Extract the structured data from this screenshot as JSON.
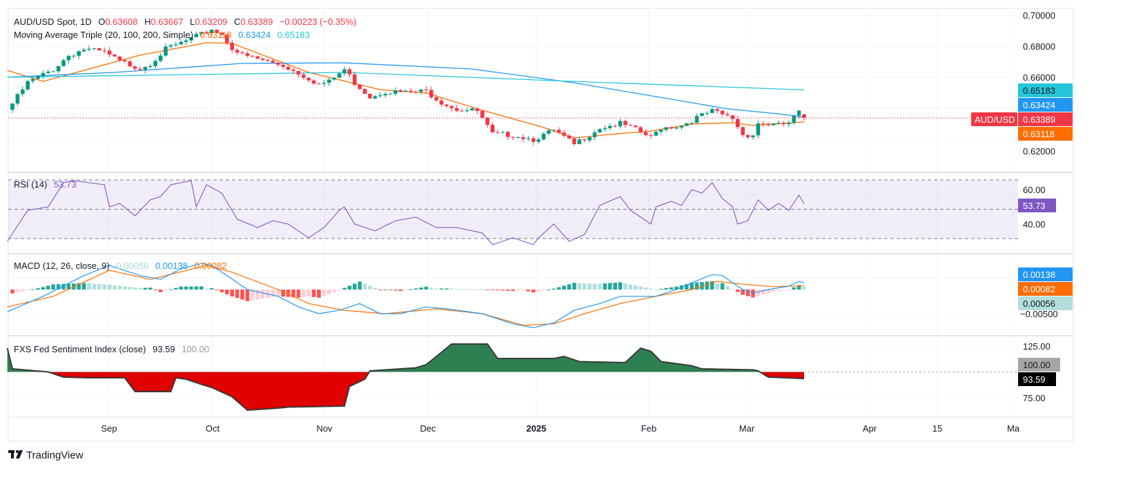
{
  "header": {
    "symbol": "AUD/USD Spot, 1D",
    "o_label": "O",
    "open": "0.63608",
    "h_label": "H",
    "high": "0.63667",
    "l_label": "L",
    "low": "0.63209",
    "c_label": "C",
    "close": "0.63389",
    "change": "−0.00223 (−0.35%)",
    "ma_title": "Moving Average Triple (20, 100, 200, Simple)",
    "ma20": "0.63118",
    "ma100": "0.63424",
    "ma200": "0.65183"
  },
  "colors": {
    "up": "#089981",
    "down": "#f23645",
    "ma20": "#ff6d00",
    "ma100": "#2196f3",
    "ma200": "#26c6da",
    "rsi": "#7e57c2",
    "fsi_up": "#2e8050",
    "fsi_down": "#e00000"
  },
  "axes": {
    "price_ticks": [
      "0.70000",
      "0.68000",
      "0.66000",
      "0.62000"
    ],
    "rsi_ticks": [
      "60.00",
      "40.00"
    ],
    "macd_ticks": [
      "−0.00500"
    ],
    "fsi_ticks": [
      "125.00",
      "75.00"
    ],
    "time_labels": [
      "Sep",
      "Oct",
      "Nov",
      "Dec",
      "2025",
      "Feb",
      "Mar",
      "Apr",
      "15",
      "Ma"
    ]
  },
  "price_labels": {
    "symbol_tag": "AUD/USD",
    "ma200": "0.65183",
    "ma100": "0.63424",
    "last": "0.63389",
    "ma20": "0.63118"
  },
  "rsi_panel": {
    "title": "RSI (14)",
    "value": "53.73"
  },
  "macd_panel": {
    "title": "MACD (12, 26, close, 9)",
    "hist": "0.00056",
    "macd": "0.00138",
    "signal": "0.00082"
  },
  "fsi_panel": {
    "title": "FXS Fed Sentiment Index (close)",
    "value": "93.59",
    "ref": "100.00"
  },
  "footer": {
    "brand": "TradingView"
  },
  "chart_data": [
    {
      "type": "candlestick",
      "title": "AUD/USD Spot, 1D",
      "x_unit": "bar index (daily bars, mid-Aug 2024 to 19 Mar 2025)",
      "ylim": [
        0.61,
        0.7
      ],
      "close_waypoints": [
        [
          0,
          0.643
        ],
        [
          3,
          0.6565
        ],
        [
          8,
          0.665
        ],
        [
          11,
          0.674
        ],
        [
          14,
          0.678
        ],
        [
          18,
          0.676
        ],
        [
          21,
          0.67
        ],
        [
          25,
          0.666
        ],
        [
          27,
          0.669
        ],
        [
          30,
          0.678
        ],
        [
          33,
          0.682
        ],
        [
          37,
          0.6875
        ],
        [
          39,
          0.691
        ],
        [
          41,
          0.6875
        ],
        [
          43,
          0.679
        ],
        [
          45,
          0.674
        ],
        [
          49,
          0.671
        ],
        [
          53,
          0.6675
        ],
        [
          57,
          0.661
        ],
        [
          60,
          0.6555
        ],
        [
          62,
          0.657
        ],
        [
          65,
          0.665
        ],
        [
          67,
          0.6565
        ],
        [
          70,
          0.6475
        ],
        [
          73,
          0.651
        ],
        [
          77,
          0.65
        ],
        [
          81,
          0.651
        ],
        [
          84,
          0.644
        ],
        [
          87,
          0.6395
        ],
        [
          91,
          0.638
        ],
        [
          94,
          0.623
        ],
        [
          98,
          0.623
        ],
        [
          102,
          0.62
        ],
        [
          106,
          0.6255
        ],
        [
          110,
          0.6165
        ],
        [
          112,
          0.621
        ],
        [
          115,
          0.6275
        ],
        [
          119,
          0.63
        ],
        [
          122,
          0.626
        ],
        [
          125,
          0.621
        ],
        [
          127,
          0.6275
        ],
        [
          131,
          0.629
        ],
        [
          134,
          0.634
        ],
        [
          137,
          0.638
        ],
        [
          141,
          0.6335
        ],
        [
          143,
          0.623
        ],
        [
          145,
          0.623
        ],
        [
          146,
          0.6305
        ],
        [
          150,
          0.629
        ],
        [
          152,
          0.6305
        ],
        [
          154,
          0.6375
        ],
        [
          155,
          0.63389
        ]
      ],
      "last_bar": {
        "open": 0.63608,
        "high": 0.63667,
        "low": 0.63209,
        "close": 0.63389
      },
      "ma": [
        {
          "name": "SMA 20",
          "points": [
            [
              -1,
              0.6644
            ],
            [
              6,
              0.6573
            ],
            [
              25,
              0.6742
            ],
            [
              38,
              0.6822
            ],
            [
              43,
              0.6818
            ],
            [
              58,
              0.6631
            ],
            [
              72,
              0.652
            ],
            [
              81,
              0.6498
            ],
            [
              92,
              0.6387
            ],
            [
              104,
              0.6276
            ],
            [
              110,
              0.6209
            ],
            [
              117,
              0.6231
            ],
            [
              125,
              0.6253
            ],
            [
              133,
              0.6298
            ],
            [
              141,
              0.6307
            ],
            [
              145,
              0.6289
            ],
            [
              155,
              0.63118
            ]
          ]
        },
        {
          "name": "SMA 100",
          "points": [
            [
              -1,
              0.66
            ],
            [
              20,
              0.6631
            ],
            [
              45,
              0.6689
            ],
            [
              65,
              0.6693
            ],
            [
              90,
              0.6653
            ],
            [
              110,
              0.6564
            ],
            [
              130,
              0.6453
            ],
            [
              140,
              0.6396
            ],
            [
              150,
              0.6364
            ],
            [
              155,
              0.63424
            ]
          ]
        },
        {
          "name": "SMA 200",
          "points": [
            [
              -1,
              0.66
            ],
            [
              65,
              0.6631
            ],
            [
              110,
              0.6573
            ],
            [
              155,
              0.65183
            ]
          ]
        }
      ]
    },
    {
      "type": "line",
      "title": "RSI (14)",
      "ylim": [
        20,
        80
      ],
      "bands": [
        30,
        50,
        70
      ],
      "points": [
        [
          -1,
          28.1
        ],
        [
          3,
          49.3
        ],
        [
          7,
          51.6
        ],
        [
          10,
          68.1
        ],
        [
          12,
          69.5
        ],
        [
          15,
          68.1
        ],
        [
          18,
          66.7
        ],
        [
          19,
          51.6
        ],
        [
          21,
          54
        ],
        [
          24,
          45.5
        ],
        [
          27,
          56.4
        ],
        [
          29,
          58.7
        ],
        [
          31,
          66.7
        ],
        [
          35,
          69.5
        ],
        [
          36,
          51.6
        ],
        [
          38,
          66.7
        ],
        [
          41,
          61
        ],
        [
          44,
          43.2
        ],
        [
          48,
          37.5
        ],
        [
          51,
          42.2
        ],
        [
          54,
          39.9
        ],
        [
          58,
          30.5
        ],
        [
          61,
          37.5
        ],
        [
          64,
          49.3
        ],
        [
          65,
          51.6
        ],
        [
          67,
          39.9
        ],
        [
          71,
          35.2
        ],
        [
          75,
          42.2
        ],
        [
          79,
          44.6
        ],
        [
          83,
          37.5
        ],
        [
          87,
          37.5
        ],
        [
          92,
          33.8
        ],
        [
          94,
          25.8
        ],
        [
          98,
          30.5
        ],
        [
          102,
          25.8
        ],
        [
          103,
          30.5
        ],
        [
          106,
          39.9
        ],
        [
          109,
          28.1
        ],
        [
          112,
          32.8
        ],
        [
          115,
          52.6
        ],
        [
          119,
          58.7
        ],
        [
          121,
          49.3
        ],
        [
          125,
          39.9
        ],
        [
          126,
          51.6
        ],
        [
          129,
          55.4
        ],
        [
          131,
          52.6
        ],
        [
          133,
          63.4
        ],
        [
          135,
          61
        ],
        [
          137,
          68.1
        ],
        [
          139,
          57.3
        ],
        [
          141,
          51.6
        ],
        [
          142,
          39.9
        ],
        [
          144,
          42.2
        ],
        [
          146,
          56.4
        ],
        [
          148,
          49.3
        ],
        [
          150,
          54
        ],
        [
          152,
          49.3
        ],
        [
          154,
          59.6
        ],
        [
          155,
          53.73
        ]
      ]
    },
    {
      "type": "line+histogram",
      "title": "MACD (12, 26, close, 9)",
      "macd": [
        [
          -1,
          -0.0046
        ],
        [
          6,
          -0.0014
        ],
        [
          14,
          0.0029
        ],
        [
          19,
          0.005
        ],
        [
          25,
          0.0029
        ],
        [
          29,
          0.0021
        ],
        [
          33,
          0.0043
        ],
        [
          37,
          0.0054
        ],
        [
          39,
          0.005
        ],
        [
          42,
          0.0029
        ],
        [
          46,
          0
        ],
        [
          52,
          -0.0014
        ],
        [
          56,
          -0.0036
        ],
        [
          60,
          -0.005
        ],
        [
          64,
          -0.0043
        ],
        [
          68,
          -0.0029
        ],
        [
          72,
          -0.005
        ],
        [
          76,
          -0.005
        ],
        [
          81,
          -0.0036
        ],
        [
          85,
          -0.004
        ],
        [
          92,
          -0.005
        ],
        [
          98,
          -0.0071
        ],
        [
          102,
          -0.0079
        ],
        [
          106,
          -0.0069
        ],
        [
          110,
          -0.0043
        ],
        [
          115,
          -0.0029
        ],
        [
          119,
          -0.0014
        ],
        [
          123,
          -0.0014
        ],
        [
          126,
          -0.0014
        ],
        [
          130,
          0
        ],
        [
          133,
          0.0014
        ],
        [
          137,
          0.0031
        ],
        [
          139,
          0.0029
        ],
        [
          143,
          0
        ],
        [
          145,
          -0.0007
        ],
        [
          148,
          0
        ],
        [
          152,
          0.0007
        ],
        [
          154,
          0.0017
        ],
        [
          155,
          0.00138
        ]
      ],
      "signal": [
        [
          -1,
          -0.0036
        ],
        [
          8,
          -0.0014
        ],
        [
          19,
          0.004
        ],
        [
          27,
          0.0021
        ],
        [
          38,
          0.005
        ],
        [
          43,
          0.0036
        ],
        [
          52,
          0
        ],
        [
          58,
          -0.0029
        ],
        [
          65,
          -0.0043
        ],
        [
          73,
          -0.005
        ],
        [
          83,
          -0.004
        ],
        [
          92,
          -0.005
        ],
        [
          100,
          -0.0074
        ],
        [
          106,
          -0.0071
        ],
        [
          112,
          -0.005
        ],
        [
          119,
          -0.0029
        ],
        [
          126,
          -0.0014
        ],
        [
          133,
          0
        ],
        [
          138,
          0.0017
        ],
        [
          143,
          0.0011
        ],
        [
          149,
          0.0006
        ],
        [
          155,
          0.00082
        ]
      ],
      "last": {
        "macd": 0.00138,
        "signal": 0.00082,
        "hist": 0.00056
      }
    },
    {
      "type": "area",
      "title": "FXS Fed Sentiment Index (close)",
      "baseline": 100,
      "ylim": [
        60,
        135
      ],
      "points": [
        [
          -1,
          123
        ],
        [
          0,
          103
        ],
        [
          7,
          100
        ],
        [
          10,
          95
        ],
        [
          15,
          94.3
        ],
        [
          22,
          94.3
        ],
        [
          24,
          81
        ],
        [
          31,
          81
        ],
        [
          32,
          94.3
        ],
        [
          34,
          93
        ],
        [
          37,
          88
        ],
        [
          39,
          85
        ],
        [
          43,
          76
        ],
        [
          46,
          63
        ],
        [
          52,
          65
        ],
        [
          54,
          66
        ],
        [
          65,
          67
        ],
        [
          66,
          86
        ],
        [
          69,
          93
        ],
        [
          70,
          101
        ],
        [
          79,
          104
        ],
        [
          81,
          107
        ],
        [
          84,
          119
        ],
        [
          86,
          127
        ],
        [
          93,
          127
        ],
        [
          95,
          113
        ],
        [
          106,
          113
        ],
        [
          108,
          115
        ],
        [
          111,
          110
        ],
        [
          120,
          109
        ],
        [
          123,
          123
        ],
        [
          125,
          120
        ],
        [
          127,
          110
        ],
        [
          133,
          106
        ],
        [
          135,
          103
        ],
        [
          145,
          102
        ],
        [
          146,
          101
        ],
        [
          148,
          95
        ],
        [
          155,
          93.59
        ]
      ]
    }
  ]
}
